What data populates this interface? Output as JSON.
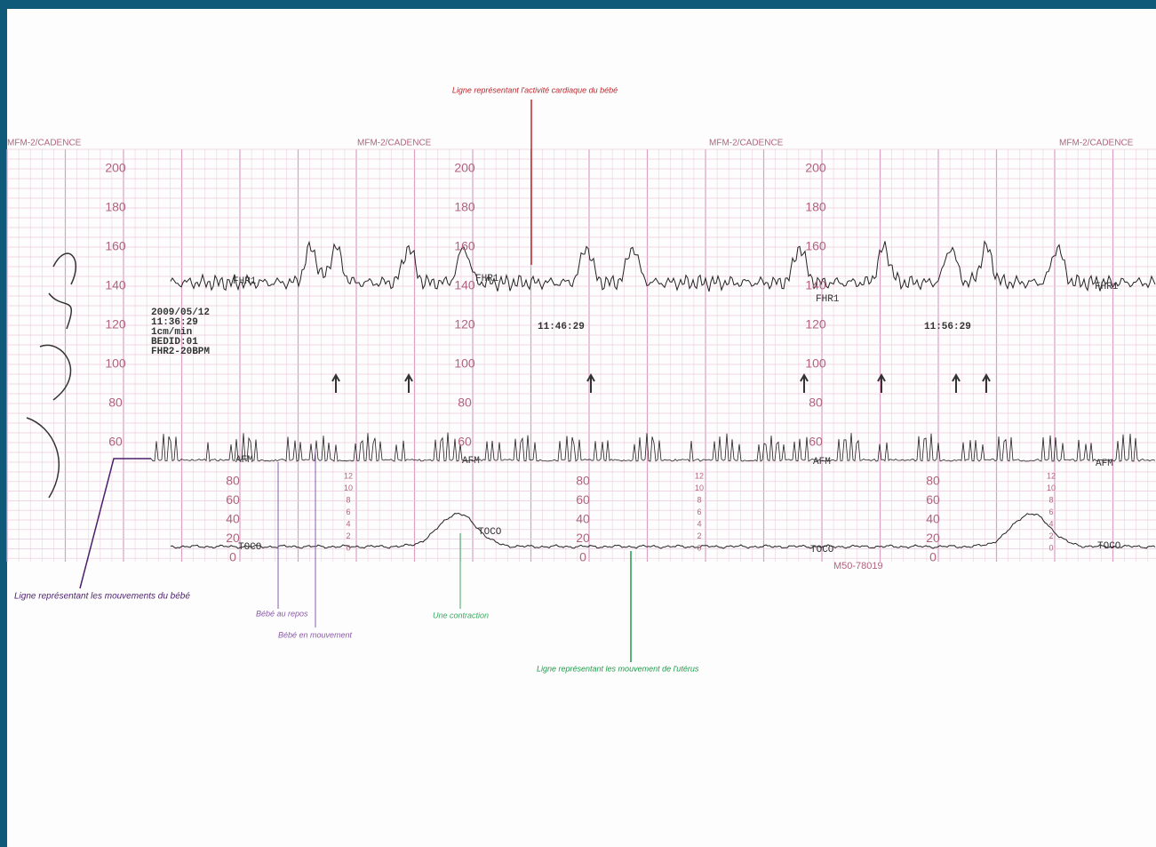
{
  "header": "MFM-2/CADENCE",
  "annotations": {
    "heart": "Ligne représentant l'activité cardiaque du bébé",
    "movements": "Ligne représentant les mouvements du bébé",
    "rest": "Bébé au repos",
    "moving": "Bébé en mouvement",
    "contraction": "Une contraction",
    "uterus": "Ligne représentant les mouvement de l'utérus"
  },
  "fhr_scale": [
    200,
    180,
    160,
    140,
    120,
    100,
    80,
    60
  ],
  "toco_scale": [
    80,
    60,
    40,
    20,
    0
  ],
  "kpa_scale": [
    12,
    10,
    8,
    6,
    4,
    2,
    0
  ],
  "info": [
    "2009/05/12",
    "11:36:29",
    "1cm/min",
    "BEDID:01",
    "FHR2-20BPM"
  ],
  "times": [
    "11:46:29",
    "11:56:29"
  ],
  "trace_labels": {
    "fhr": "FHR1",
    "afm": "AFM",
    "toco": "TOCO"
  },
  "code": "M50-78019"
}
